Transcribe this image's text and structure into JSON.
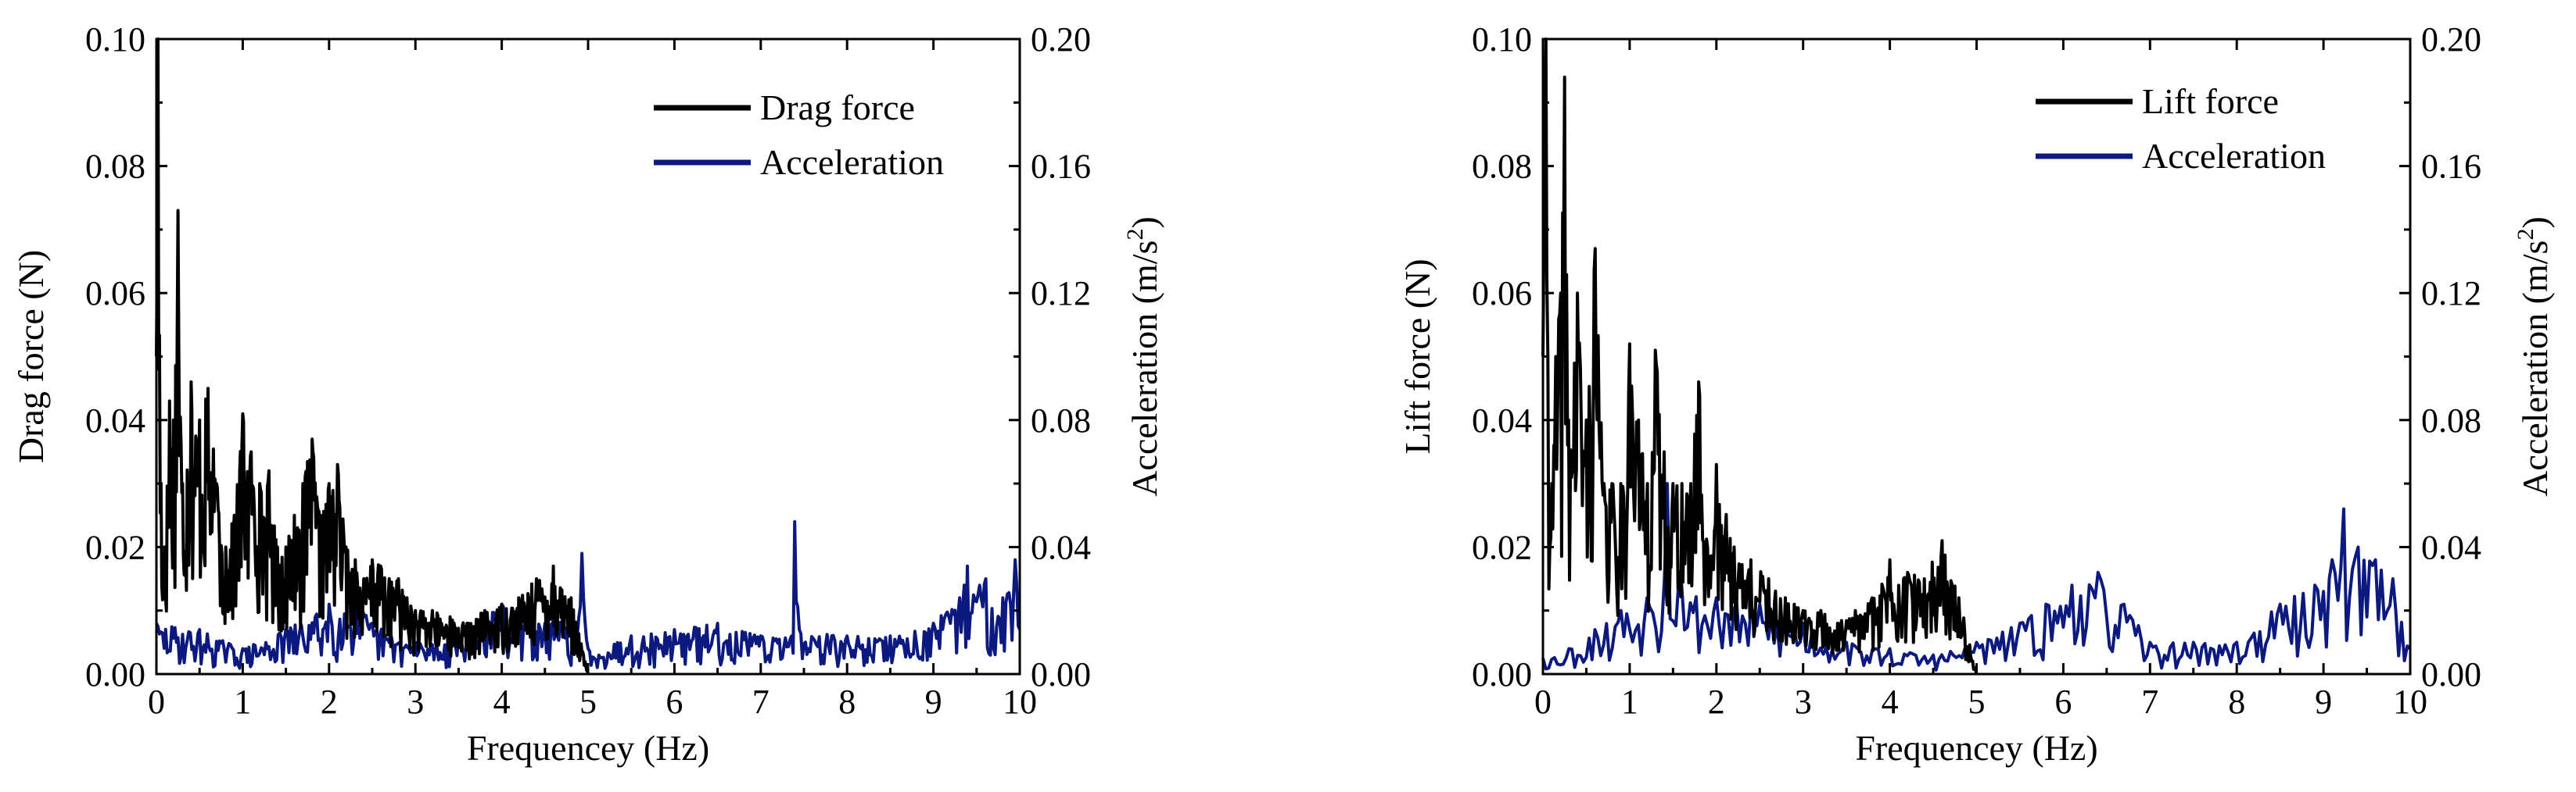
{
  "chart_data": [
    {
      "type": "line",
      "id": "drag",
      "xlabel": "Frequencey (Hz)",
      "ylabel_left": "Drag force (N)",
      "ylabel_right": "Acceleration (m/s",
      "ylabel_right_sup": "2",
      "ylabel_right_close": ")",
      "xlim": [
        0,
        10
      ],
      "ylim_left": [
        0,
        0.1
      ],
      "ylim_right": [
        0,
        0.2
      ],
      "x_ticks": [
        "0",
        "1",
        "2",
        "3",
        "4",
        "5",
        "6",
        "7",
        "8",
        "9",
        "10"
      ],
      "y_left_ticks": [
        "0.00",
        "0.02",
        "0.04",
        "0.06",
        "0.08",
        "0.10"
      ],
      "y_right_ticks": [
        "0.00",
        "0.04",
        "0.08",
        "0.12",
        "0.16",
        "0.20"
      ],
      "legend": [
        "Drag force",
        "Acceleration"
      ],
      "legend_position": "top-right",
      "colors": {
        "force": "#000000",
        "accel": "#0c1a80"
      },
      "force_envelope": {
        "x": [
          0,
          0.02,
          0.05,
          0.1,
          0.15,
          0.2,
          0.25,
          0.3,
          0.4,
          0.5,
          0.6,
          0.7,
          0.8,
          0.9,
          1.0,
          1.1,
          1.2,
          1.3,
          1.4,
          1.5,
          1.6,
          1.7,
          1.8,
          1.9,
          2.0,
          2.1,
          2.2,
          2.3,
          2.4,
          2.5,
          2.6,
          2.7,
          2.8,
          2.9,
          3.0,
          3.2,
          3.4,
          3.6,
          3.8,
          4.0,
          4.2,
          4.4,
          4.6,
          4.8,
          5.0
        ],
        "y": [
          0.05,
          0.1,
          0.03,
          0.02,
          0.043,
          0.04,
          0.073,
          0.03,
          0.046,
          0.04,
          0.045,
          0.03,
          0.02,
          0.025,
          0.041,
          0.035,
          0.03,
          0.032,
          0.02,
          0.02,
          0.025,
          0.03,
          0.037,
          0.025,
          0.03,
          0.033,
          0.02,
          0.018,
          0.015,
          0.018,
          0.017,
          0.015,
          0.015,
          0.012,
          0.01,
          0.01,
          0.009,
          0.008,
          0.01,
          0.011,
          0.012,
          0.015,
          0.017,
          0.012,
          0.0
        ]
      },
      "accel_envelope": {
        "x": [
          0,
          0.5,
          1.0,
          1.5,
          2.0,
          2.3,
          2.5,
          3.0,
          3.5,
          4.0,
          4.5,
          4.9,
          4.92,
          5.0,
          5.5,
          6.0,
          6.5,
          7.0,
          7.35,
          7.4,
          7.45,
          8.0,
          8.5,
          9.0,
          9.3,
          9.4,
          9.6,
          9.8,
          9.95,
          10.0
        ],
        "y": [
          0.016,
          0.014,
          0.008,
          0.014,
          0.022,
          0.025,
          0.016,
          0.01,
          0.012,
          0.022,
          0.016,
          0.018,
          0.038,
          0.008,
          0.012,
          0.014,
          0.016,
          0.012,
          0.012,
          0.048,
          0.014,
          0.012,
          0.012,
          0.016,
          0.024,
          0.034,
          0.03,
          0.024,
          0.036,
          0.014
        ]
      },
      "force_seed": 17,
      "accel_seed": 29,
      "force_points": 560,
      "accel_points": 560
    },
    {
      "type": "line",
      "id": "lift",
      "xlabel": "Frequencey (Hz)",
      "ylabel_left": "Lift force (N)",
      "ylabel_right": "Acceleration (m/s",
      "ylabel_right_sup": "2",
      "ylabel_right_close": ")",
      "xlim": [
        0,
        10
      ],
      "ylim_left": [
        0,
        0.1
      ],
      "ylim_right": [
        0,
        0.2
      ],
      "x_ticks": [
        "0",
        "1",
        "2",
        "3",
        "4",
        "5",
        "6",
        "7",
        "8",
        "9",
        "10"
      ],
      "y_left_ticks": [
        "0.00",
        "0.02",
        "0.04",
        "0.06",
        "0.08",
        "0.10"
      ],
      "y_right_ticks": [
        "0.00",
        "0.04",
        "0.08",
        "0.12",
        "0.16",
        "0.20"
      ],
      "legend": [
        "Lift force",
        "Acceleration"
      ],
      "legend_position": "top-right",
      "colors": {
        "force": "#000000",
        "accel": "#0c1a80"
      },
      "force_envelope": {
        "x": [
          0,
          0.03,
          0.06,
          0.1,
          0.15,
          0.2,
          0.25,
          0.3,
          0.4,
          0.5,
          0.6,
          0.7,
          0.8,
          0.9,
          1.0,
          1.1,
          1.2,
          1.3,
          1.4,
          1.5,
          1.6,
          1.7,
          1.8,
          1.9,
          2.0,
          2.2,
          2.4,
          2.6,
          2.8,
          3.0,
          3.2,
          3.4,
          3.6,
          3.8,
          4.0,
          4.2,
          4.4,
          4.6,
          4.8,
          5.0
        ],
        "y": [
          0.05,
          0.1,
          0.05,
          0.03,
          0.05,
          0.06,
          0.094,
          0.04,
          0.06,
          0.04,
          0.067,
          0.03,
          0.03,
          0.03,
          0.052,
          0.04,
          0.03,
          0.051,
          0.035,
          0.03,
          0.03,
          0.03,
          0.046,
          0.02,
          0.033,
          0.02,
          0.018,
          0.015,
          0.012,
          0.01,
          0.01,
          0.008,
          0.01,
          0.012,
          0.018,
          0.016,
          0.015,
          0.021,
          0.012,
          0.0
        ]
      },
      "accel_envelope": {
        "x": [
          0,
          0.3,
          0.6,
          0.9,
          1.2,
          1.4,
          1.45,
          1.6,
          2.0,
          2.5,
          3.0,
          3.5,
          4.0,
          4.5,
          5.0,
          5.5,
          5.8,
          6.1,
          6.4,
          6.7,
          7.0,
          7.5,
          8.0,
          8.5,
          8.9,
          9.1,
          9.25,
          9.4,
          9.6,
          9.8,
          10.0
        ],
        "y": [
          0.005,
          0.008,
          0.014,
          0.02,
          0.024,
          0.03,
          0.06,
          0.028,
          0.024,
          0.022,
          0.016,
          0.01,
          0.008,
          0.006,
          0.01,
          0.016,
          0.022,
          0.028,
          0.032,
          0.022,
          0.01,
          0.01,
          0.01,
          0.022,
          0.028,
          0.036,
          0.052,
          0.04,
          0.036,
          0.03,
          0.008
        ]
      },
      "force_seed": 41,
      "accel_seed": 53,
      "force_points": 440,
      "accel_points": 300
    }
  ]
}
